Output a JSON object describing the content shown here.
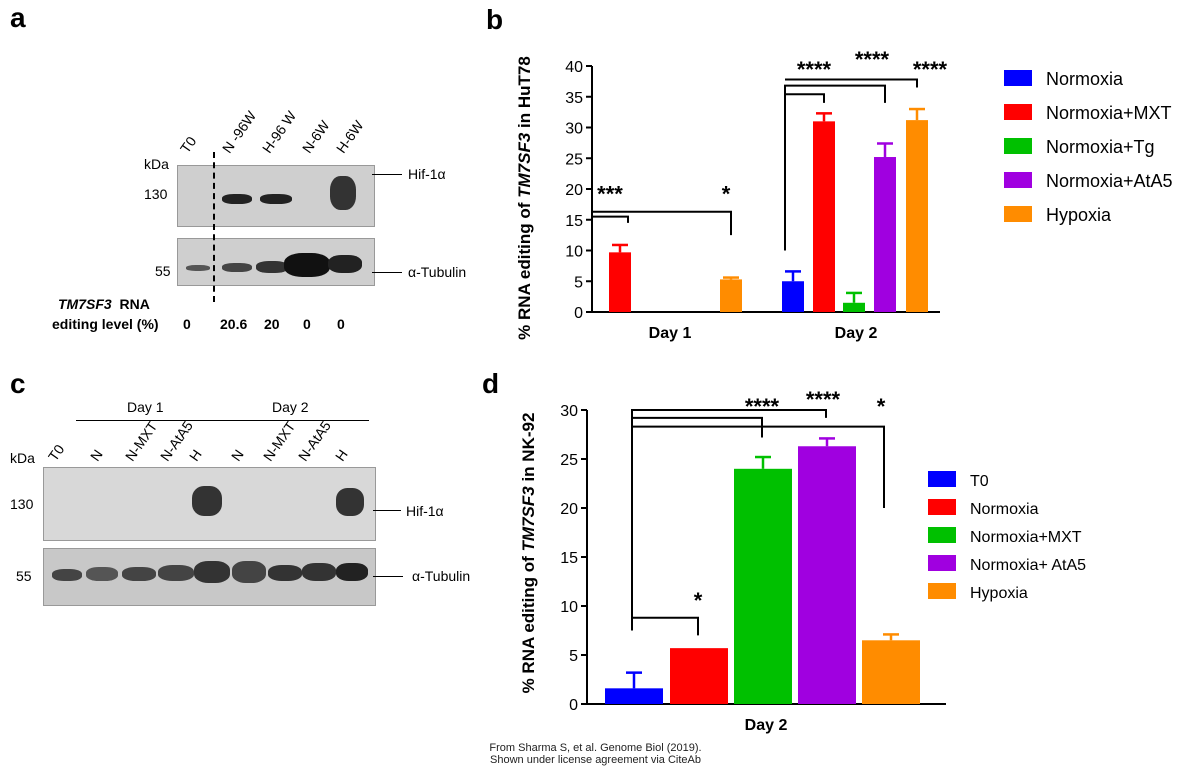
{
  "panels": {
    "a": "a",
    "b": "b",
    "c": "c",
    "d": "d"
  },
  "panel_a": {
    "kda": "kDa",
    "lanes": [
      "T0",
      "N -96W",
      "H-96 W",
      "N-6W",
      "H-6W"
    ],
    "mw_top": "130",
    "mw_bottom": "55",
    "band_top": "Hif-1α",
    "band_bottom": "α-Tubulin",
    "gene": "TM7SF3",
    "rna": "RNA",
    "editing_label": "editing level (%)",
    "editing_values": [
      "0",
      "20.6",
      "20",
      "0",
      "0"
    ]
  },
  "panel_c": {
    "kda": "kDa",
    "day1": "Day 1",
    "day2": "Day 2",
    "lanes": [
      "T0",
      "N",
      "N-MXT",
      "N-AtA5",
      "H",
      "N",
      "N-MXT",
      "N-AtA5",
      "H"
    ],
    "mw_top": "130",
    "mw_bottom": "55",
    "band_top": "Hif-1α",
    "band_bottom": "α-Tubulin"
  },
  "credit": {
    "line1": "From Sharma S, et al. Genome Biol (2019).",
    "line2": "Shown under license agreement via CiteAb"
  },
  "chart_data": [
    {
      "type": "bar",
      "panel": "b",
      "ylabel_prefix": "% RNA editing of ",
      "ylabel_gene": "TM7SF3",
      "ylabel_suffix": " in HuT78",
      "categories": [
        "Day 1",
        "Day 2"
      ],
      "ylim": [
        0,
        40
      ],
      "yticks": [
        "0",
        "5",
        "10",
        "15",
        "20",
        "25",
        "30",
        "35",
        "40"
      ],
      "series": [
        {
          "name": "Normoxia",
          "color": "#0000ff",
          "values": [
            null,
            5.0
          ],
          "err": [
            null,
            1.6
          ]
        },
        {
          "name": "Normoxia+MXT",
          "color": "#ff0000",
          "values": [
            9.7,
            31.0
          ],
          "err": [
            1.2,
            1.3
          ]
        },
        {
          "name": "Normoxia+Tg",
          "color": "#00c000",
          "values": [
            null,
            1.5
          ],
          "err": [
            null,
            1.6
          ]
        },
        {
          "name": "Normoxia+AtA5",
          "color": "#a000e0",
          "values": [
            null,
            25.2
          ],
          "err": [
            null,
            2.2
          ]
        },
        {
          "name": "Hypoxia",
          "color": "#ff8c00",
          "values": [
            5.3,
            31.2
          ],
          "err": [
            0.3,
            1.8
          ]
        }
      ],
      "significance": [
        "***",
        "*",
        "****",
        "****",
        "****"
      ],
      "legend": "right"
    },
    {
      "type": "bar",
      "panel": "d",
      "ylabel_prefix": "% RNA editing of ",
      "ylabel_gene": "TM7SF3",
      "ylabel_suffix": " in NK-92",
      "categories": [
        "Day 2"
      ],
      "ylim": [
        0,
        30
      ],
      "yticks": [
        "0",
        "5",
        "10",
        "15",
        "20",
        "25",
        "30"
      ],
      "series": [
        {
          "name": "T0",
          "color": "#0000ff",
          "values": [
            1.6
          ],
          "err": [
            1.6
          ]
        },
        {
          "name": "Normoxia",
          "color": "#ff0000",
          "values": [
            5.7
          ],
          "err": [
            0
          ]
        },
        {
          "name": "Normoxia+MXT",
          "color": "#00c000",
          "values": [
            24.0
          ],
          "err": [
            1.2
          ]
        },
        {
          "name": "Normoxia+ AtA5",
          "color": "#a000e0",
          "values": [
            26.3
          ],
          "err": [
            0.8
          ]
        },
        {
          "name": "Hypoxia",
          "color": "#ff8c00",
          "values": [
            6.5
          ],
          "err": [
            0.6
          ]
        }
      ],
      "significance": [
        "*",
        "****",
        "****",
        "*"
      ],
      "legend": "right"
    }
  ]
}
